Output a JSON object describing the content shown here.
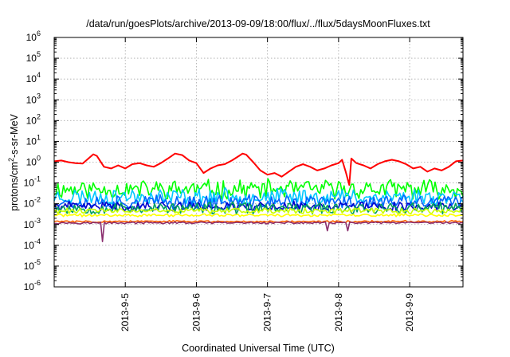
{
  "chart_data": {
    "type": "line",
    "title": "/data/run/goesPlots/archive/2013-09-09/18:00/flux/../flux/5daysMoonFluxes.txt",
    "xlabel": "Coordinated Universal Time (UTC)",
    "ylabel": {
      "prefix": "protons/cm",
      "superscript": "2",
      "suffix": "-s-sr-MeV"
    },
    "y_scale": "log",
    "ylim": [
      1e-06,
      1000000.0
    ],
    "y_ticks": [
      {
        "exp": -6,
        "base": "10",
        "power": "-6"
      },
      {
        "exp": -5,
        "base": "10",
        "power": "-5"
      },
      {
        "exp": -4,
        "base": "10",
        "power": "-4"
      },
      {
        "exp": -3,
        "base": "10",
        "power": "-3"
      },
      {
        "exp": -2,
        "base": "10",
        "power": "-2"
      },
      {
        "exp": -1,
        "base": "10",
        "power": "-1"
      },
      {
        "exp": 0,
        "base": "10",
        "power": "0"
      },
      {
        "exp": 1,
        "base": "10",
        "power": "1"
      },
      {
        "exp": 2,
        "base": "10",
        "power": "2"
      },
      {
        "exp": 3,
        "base": "10",
        "power": "3"
      },
      {
        "exp": 4,
        "base": "10",
        "power": "4"
      },
      {
        "exp": 5,
        "base": "10",
        "power": "5"
      },
      {
        "exp": 6,
        "base": "10",
        "power": "6"
      }
    ],
    "x_ticks": [
      "2013-9-5",
      "2013-9-6",
      "2013-9-7",
      "2013-9-8",
      "2013-9-9"
    ],
    "x_domain_days": [
      0,
      5.75
    ],
    "x_tick_days": [
      1,
      2,
      3,
      4,
      5
    ],
    "grid": true,
    "series": [
      {
        "color": "#ff0000",
        "points": [
          [
            0.0,
            1.1
          ],
          [
            0.1,
            1.2
          ],
          [
            0.2,
            1.0
          ],
          [
            0.3,
            0.9
          ],
          [
            0.4,
            0.85
          ],
          [
            0.5,
            1.7
          ],
          [
            0.55,
            2.4
          ],
          [
            0.6,
            2.0
          ],
          [
            0.7,
            0.6
          ],
          [
            0.8,
            0.5
          ],
          [
            0.9,
            0.7
          ],
          [
            1.0,
            0.5
          ],
          [
            1.1,
            0.8
          ],
          [
            1.2,
            0.9
          ],
          [
            1.3,
            0.7
          ],
          [
            1.4,
            0.6
          ],
          [
            1.5,
            0.9
          ],
          [
            1.6,
            1.5
          ],
          [
            1.7,
            2.6
          ],
          [
            1.8,
            2.2
          ],
          [
            1.9,
            1.2
          ],
          [
            2.0,
            0.9
          ],
          [
            2.1,
            0.3
          ],
          [
            2.2,
            0.5
          ],
          [
            2.3,
            0.7
          ],
          [
            2.4,
            0.8
          ],
          [
            2.5,
            1.2
          ],
          [
            2.6,
            2.0
          ],
          [
            2.65,
            2.6
          ],
          [
            2.7,
            2.3
          ],
          [
            2.8,
            1.0
          ],
          [
            2.9,
            0.4
          ],
          [
            3.0,
            0.25
          ],
          [
            3.1,
            0.3
          ],
          [
            3.2,
            0.2
          ],
          [
            3.3,
            0.35
          ],
          [
            3.4,
            0.6
          ],
          [
            3.5,
            0.8
          ],
          [
            3.6,
            0.6
          ],
          [
            3.7,
            0.4
          ],
          [
            3.8,
            0.5
          ],
          [
            3.9,
            0.7
          ],
          [
            4.0,
            0.9
          ],
          [
            4.05,
            1.3
          ],
          [
            4.1,
            0.35
          ],
          [
            4.15,
            0.08
          ],
          [
            4.18,
            1.5
          ],
          [
            4.25,
            0.9
          ],
          [
            4.35,
            0.7
          ],
          [
            4.45,
            0.5
          ],
          [
            4.55,
            0.8
          ],
          [
            4.65,
            1.1
          ],
          [
            4.75,
            1.3
          ],
          [
            4.85,
            1.1
          ],
          [
            4.95,
            0.8
          ],
          [
            5.05,
            0.5
          ],
          [
            5.15,
            0.6
          ],
          [
            5.25,
            0.35
          ],
          [
            5.35,
            0.5
          ],
          [
            5.45,
            0.4
          ],
          [
            5.55,
            0.6
          ],
          [
            5.65,
            1.1
          ],
          [
            5.75,
            1.2
          ]
        ]
      },
      {
        "color": "#00ff00",
        "level": 0.05,
        "amp": 0.4,
        "seed": 11
      },
      {
        "color": "#00c8ff",
        "level": 0.022,
        "amp": 0.35,
        "seed": 23
      },
      {
        "color": "#0064ff",
        "level": 0.012,
        "amp": 0.3,
        "seed": 37
      },
      {
        "color": "#0000cc",
        "level": 0.0075,
        "amp": 0.2,
        "seed": 41
      },
      {
        "color": "#00a060",
        "level": 0.006,
        "amp": 0.25,
        "seed": 53
      },
      {
        "color": "#c8ff00",
        "level": 0.0045,
        "amp": 0.12,
        "seed": 61
      },
      {
        "color": "#ffff00",
        "level": 0.0028,
        "amp": 0.06,
        "seed": 71
      },
      {
        "color": "#ff6400",
        "level": 0.0014,
        "amp": 0.04,
        "seed": 83
      },
      {
        "color": "#8b2f6f",
        "level": 0.0012,
        "amp": 0.04,
        "seed": 97,
        "dips": [
          [
            0.68,
            0.00015
          ],
          [
            3.85,
            0.0005
          ],
          [
            4.12,
            0.0005
          ]
        ]
      }
    ]
  }
}
